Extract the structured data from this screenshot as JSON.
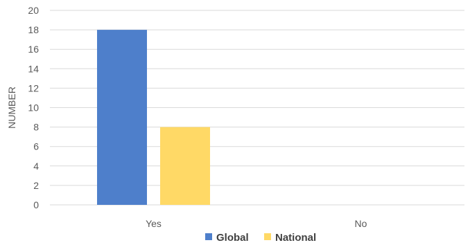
{
  "chart_data": {
    "type": "bar",
    "title": "",
    "xlabel": "",
    "ylabel": "NUMBER",
    "categories": [
      "Yes",
      "No"
    ],
    "series": [
      {
        "name": "Global",
        "color": "#4e7fcb",
        "values": [
          18,
          0
        ]
      },
      {
        "name": "National",
        "color": "#ffd966",
        "values": [
          8,
          0
        ]
      }
    ],
    "ylim": [
      0,
      20
    ],
    "yticks": [
      0,
      2,
      4,
      6,
      8,
      10,
      12,
      14,
      16,
      18,
      20
    ],
    "grid": true,
    "legend_position": "bottom"
  }
}
